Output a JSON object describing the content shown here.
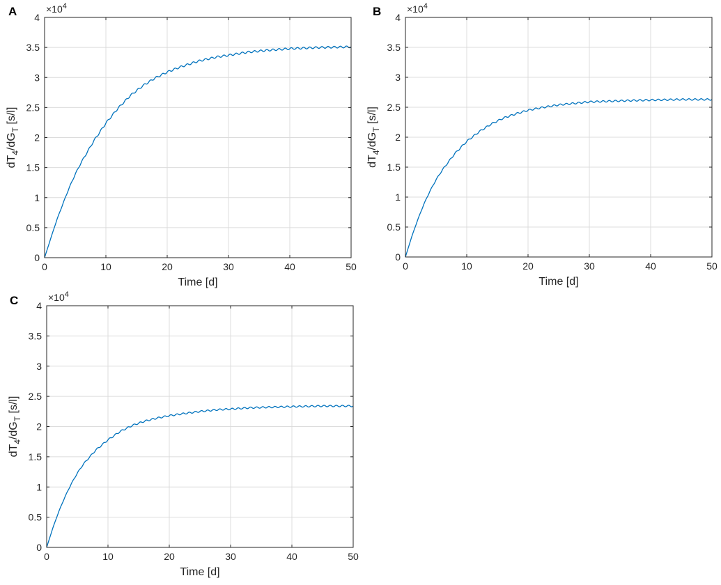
{
  "chart_data": [
    {
      "type": "line",
      "panel_label": "A",
      "xlabel": "Time [d]",
      "ylabel_base": "dT",
      "ylabel_sub1": "4",
      "ylabel_mid": "/dG",
      "ylabel_sub2": "T",
      "ylabel_unit": " [s/l]",
      "xlim": [
        0,
        50
      ],
      "ylim": [
        0,
        40000
      ],
      "xticks": [
        0,
        10,
        20,
        30,
        40,
        50
      ],
      "yticks": [
        0,
        5000,
        10000,
        15000,
        20000,
        25000,
        30000,
        35000,
        40000
      ],
      "ytick_labels": [
        "0",
        "0.5",
        "1",
        "1.5",
        "2",
        "2.5",
        "3",
        "3.5",
        "4"
      ],
      "exponent_base": "×10",
      "exponent": "4",
      "grid": true,
      "series": [
        {
          "color": "#0072bd",
          "x": [
            0,
            1,
            2,
            3,
            4,
            5,
            6,
            8,
            10,
            12,
            14,
            16,
            18,
            20,
            22,
            25,
            28,
            30,
            33,
            36,
            40,
            45,
            50
          ],
          "y": [
            0,
            3200,
            6300,
            9000,
            11600,
            13900,
            15900,
            19400,
            22400,
            24900,
            27000,
            28600,
            29900,
            30900,
            31700,
            32700,
            33400,
            33700,
            34200,
            34500,
            34800,
            35000,
            35100
          ],
          "oscillation_amplitude": 150,
          "oscillation_period": 1
        }
      ]
    },
    {
      "type": "line",
      "panel_label": "B",
      "xlabel": "Time [d]",
      "ylabel_base": "dT",
      "ylabel_sub1": "4",
      "ylabel_mid": "/dG",
      "ylabel_sub2": "T",
      "ylabel_unit": " [s/l]",
      "xlim": [
        0,
        50
      ],
      "ylim": [
        0,
        40000
      ],
      "xticks": [
        0,
        10,
        20,
        30,
        40,
        50
      ],
      "yticks": [
        0,
        5000,
        10000,
        15000,
        20000,
        25000,
        30000,
        35000,
        40000
      ],
      "ytick_labels": [
        "0",
        "0.5",
        "1",
        "1.5",
        "2",
        "2.5",
        "3",
        "3.5",
        "4"
      ],
      "exponent_base": "×10",
      "exponent": "4",
      "grid": true,
      "series": [
        {
          "color": "#0072bd",
          "x": [
            0,
            1,
            2,
            3,
            4,
            5,
            6,
            8,
            10,
            12,
            14,
            16,
            18,
            20,
            22,
            25,
            28,
            30,
            33,
            36,
            40,
            45,
            50
          ],
          "y": [
            0,
            3300,
            6200,
            8800,
            11000,
            12900,
            14500,
            17200,
            19300,
            20900,
            22200,
            23200,
            23900,
            24500,
            24900,
            25400,
            25700,
            25900,
            26000,
            26100,
            26200,
            26300,
            26300
          ],
          "oscillation_amplitude": 130,
          "oscillation_period": 1
        }
      ]
    },
    {
      "type": "line",
      "panel_label": "C",
      "xlabel": "Time [d]",
      "ylabel_base": "dT",
      "ylabel_sub1": "4",
      "ylabel_mid": "/dG",
      "ylabel_sub2": "T",
      "ylabel_unit": " [s/l]",
      "xlim": [
        0,
        50
      ],
      "ylim": [
        0,
        40000
      ],
      "xticks": [
        0,
        10,
        20,
        30,
        40,
        50
      ],
      "yticks": [
        0,
        5000,
        10000,
        15000,
        20000,
        25000,
        30000,
        35000,
        40000
      ],
      "ytick_labels": [
        "0",
        "0.5",
        "1",
        "1.5",
        "2",
        "2.5",
        "3",
        "3.5",
        "4"
      ],
      "exponent_base": "×10",
      "exponent": "4",
      "grid": true,
      "series": [
        {
          "color": "#0072bd",
          "x": [
            0,
            1,
            2,
            3,
            4,
            5,
            6,
            8,
            10,
            12,
            14,
            16,
            18,
            20,
            22,
            25,
            28,
            30,
            33,
            36,
            40,
            45,
            50
          ],
          "y": [
            0,
            3200,
            6000,
            8400,
            10500,
            12300,
            13800,
            16100,
            17800,
            19200,
            20200,
            20900,
            21400,
            21800,
            22100,
            22500,
            22800,
            22900,
            23100,
            23200,
            23300,
            23400,
            23400
          ],
          "oscillation_amplitude": 120,
          "oscillation_period": 1
        }
      ]
    }
  ]
}
